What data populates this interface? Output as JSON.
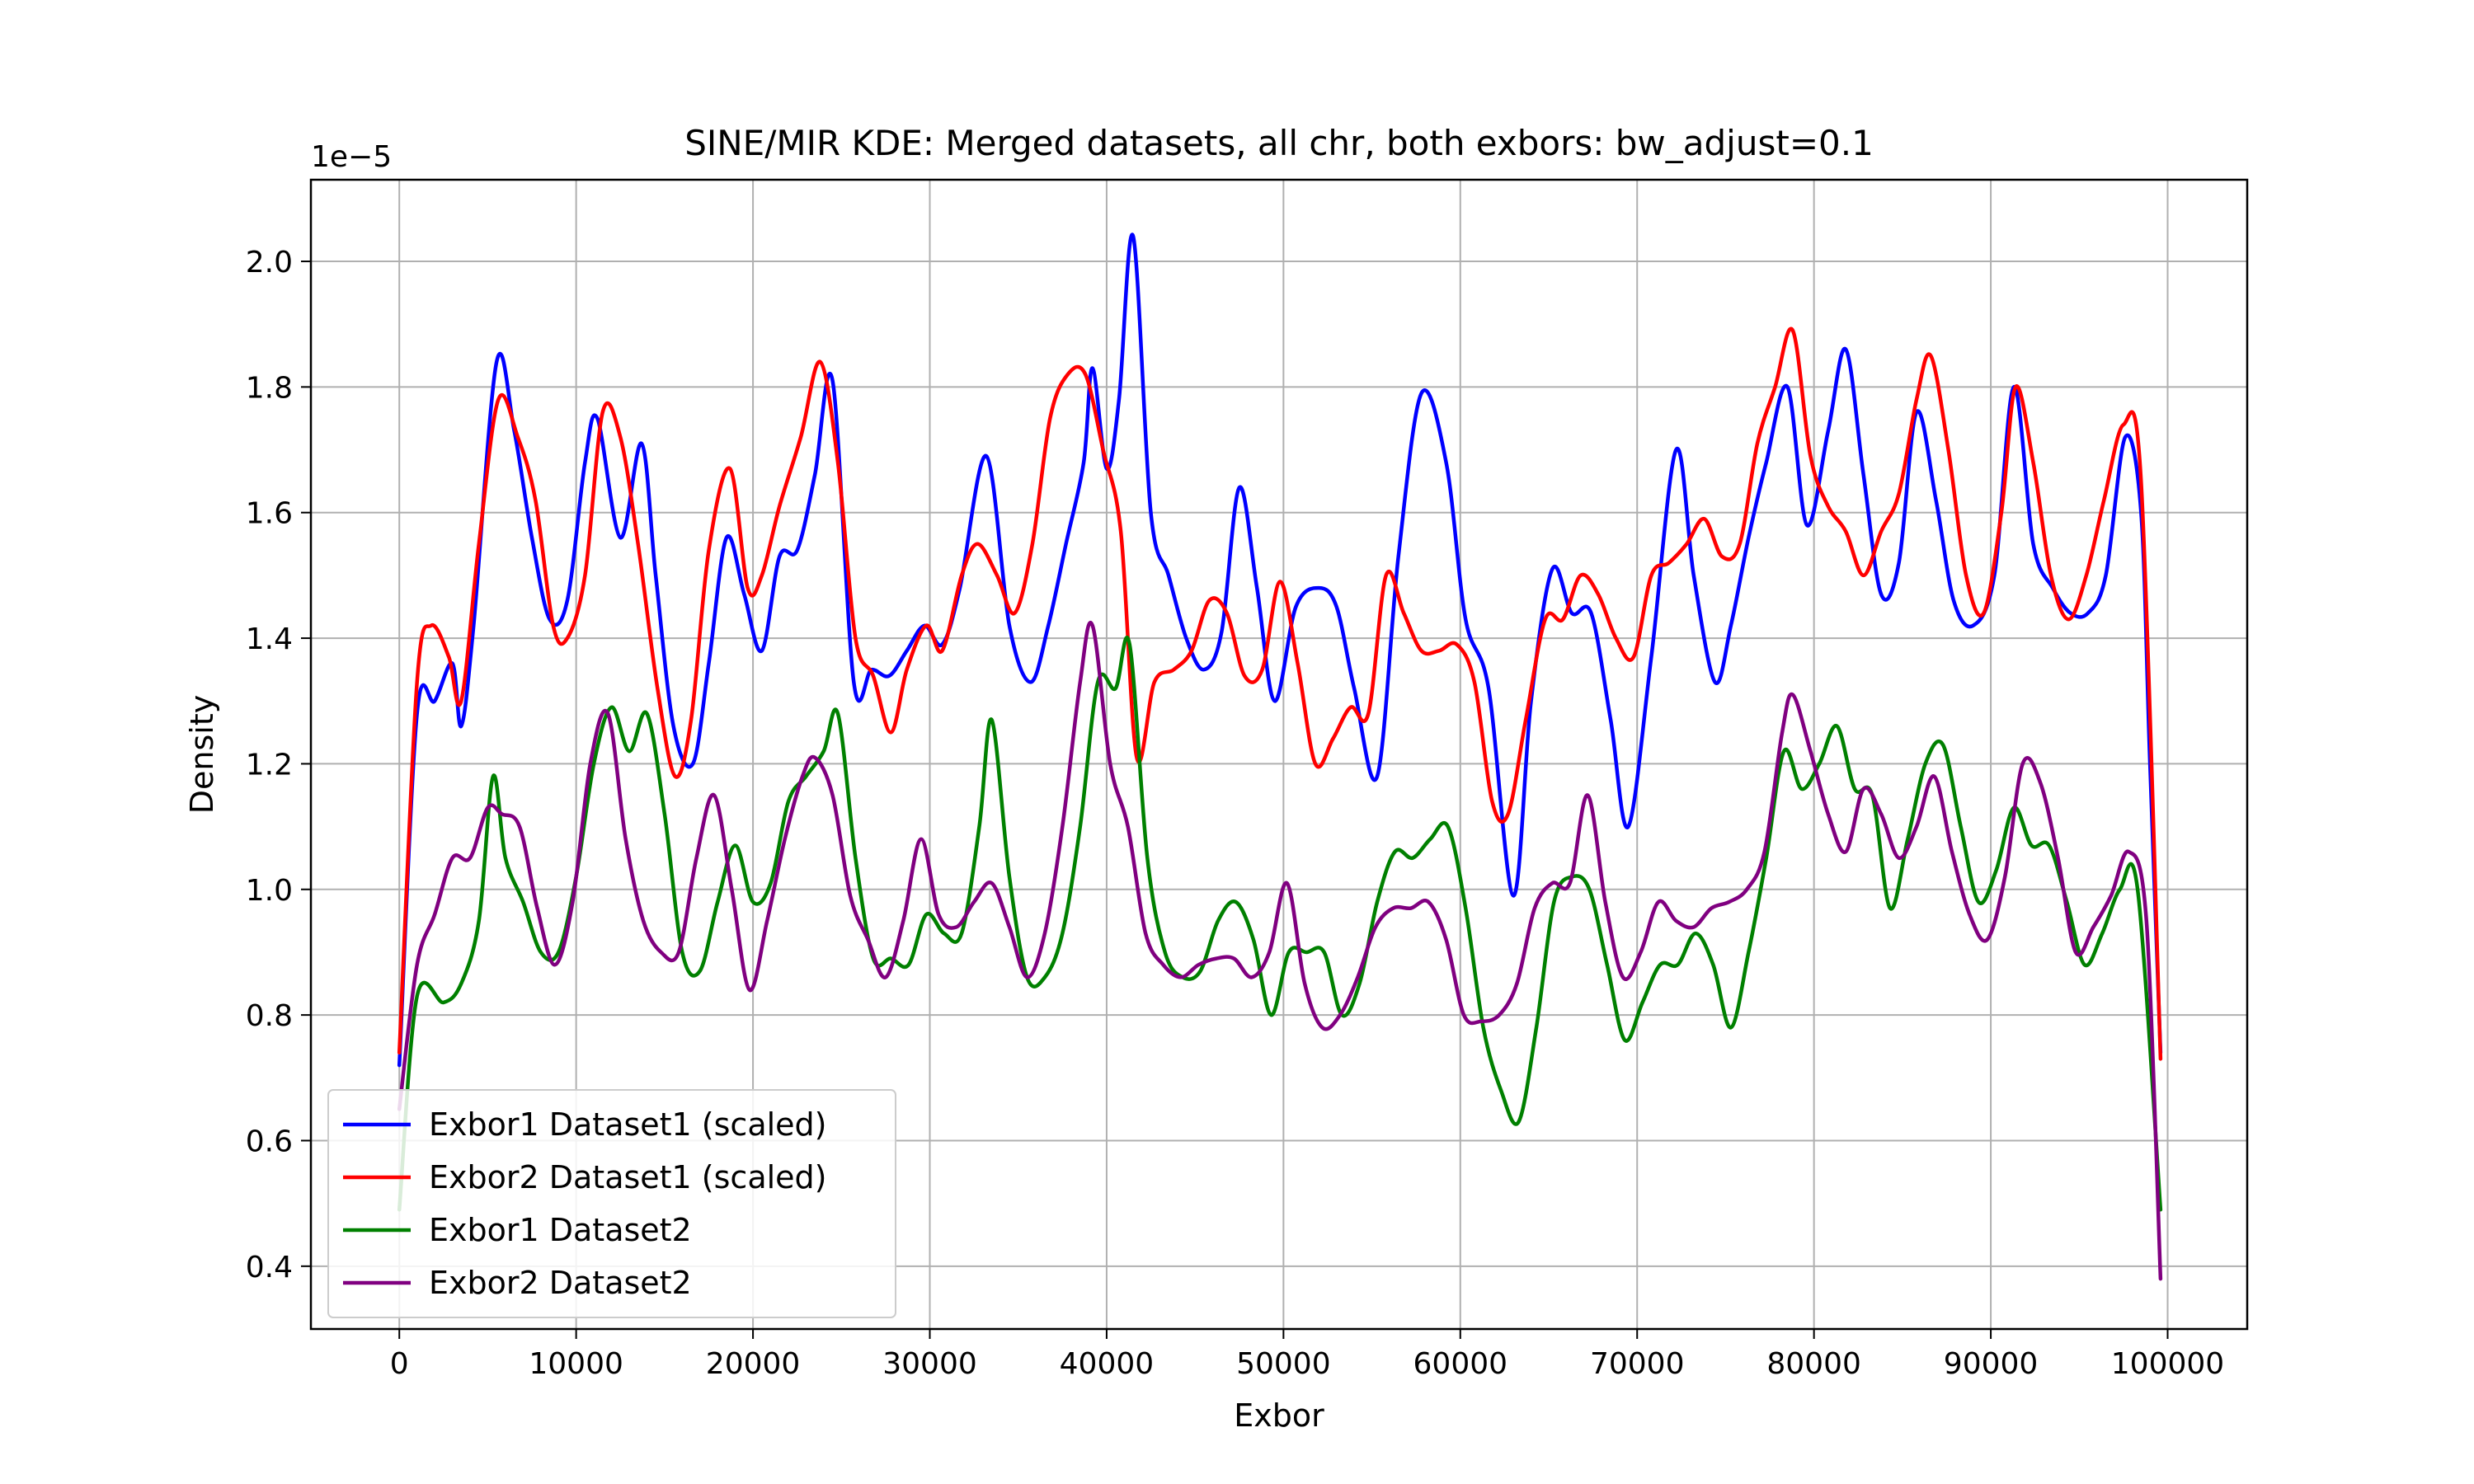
{
  "chart_data": {
    "type": "line",
    "title": "SINE/MIR KDE: Merged datasets, all chr, both exbors: bw_adjust=0.1",
    "xlabel": "Exbor",
    "ylabel": "Density",
    "y_offset_label": "1e−5",
    "xlim": [
      -5000,
      104500
    ],
    "ylim": [
      0.3,
      2.13
    ],
    "y_unit_multiplier": 1e-05,
    "grid": true,
    "legend_position": "lower-left",
    "x_ticks": [
      0,
      10000,
      20000,
      30000,
      40000,
      50000,
      60000,
      70000,
      80000,
      90000,
      100000
    ],
    "x_tick_labels": [
      "0",
      "10000",
      "20000",
      "30000",
      "40000",
      "50000",
      "60000",
      "70000",
      "80000",
      "90000",
      "100000"
    ],
    "y_ticks": [
      0.4,
      0.6,
      0.8,
      1.0,
      1.2,
      1.4,
      1.6,
      1.8,
      2.0
    ],
    "y_tick_labels": [
      "0.4",
      "0.6",
      "0.8",
      "1.0",
      "1.2",
      "1.4",
      "1.6",
      "1.8",
      "2.0"
    ],
    "series": [
      {
        "name": "Exbor1 Dataset1 (scaled)",
        "color": "#0000ff",
        "x": [
          0,
          1000,
          2000,
          3000,
          3500,
          4200,
          5500,
          6500,
          7500,
          8500,
          9500,
          10500,
          11200,
          12500,
          13700,
          14500,
          15500,
          16600,
          17500,
          18500,
          19500,
          20500,
          21500,
          22500,
          23500,
          24500,
          25700,
          26700,
          27700,
          28700,
          29700,
          30700,
          31700,
          33200,
          34500,
          35700,
          36700,
          37700,
          38700,
          39200,
          40000,
          40700,
          41500,
          42500,
          43500,
          44500,
          45500,
          46500,
          47500,
          48500,
          49500,
          50700,
          52000,
          53000,
          54000,
          55300,
          56500,
          57800,
          59200,
          60300,
          61600,
          63000,
          64000,
          65200,
          66300,
          67400,
          68500,
          69500,
          70800,
          72200,
          73200,
          74400,
          75300,
          76300,
          77300,
          78500,
          79600,
          80800,
          81800,
          82800,
          83800,
          84800,
          85800,
          86900,
          87900,
          89000,
          90200,
          91300,
          92400,
          93500,
          94500,
          95500,
          96500,
          97600,
          98500,
          99000,
          99600
        ],
        "values": [
          0.72,
          1.28,
          1.3,
          1.36,
          1.26,
          1.42,
          1.84,
          1.73,
          1.56,
          1.43,
          1.46,
          1.68,
          1.75,
          1.56,
          1.71,
          1.5,
          1.26,
          1.2,
          1.36,
          1.56,
          1.47,
          1.38,
          1.53,
          1.54,
          1.66,
          1.81,
          1.33,
          1.35,
          1.34,
          1.38,
          1.42,
          1.39,
          1.48,
          1.69,
          1.42,
          1.33,
          1.42,
          1.55,
          1.68,
          1.83,
          1.67,
          1.78,
          2.04,
          1.6,
          1.5,
          1.4,
          1.35,
          1.41,
          1.64,
          1.48,
          1.3,
          1.45,
          1.48,
          1.45,
          1.32,
          1.18,
          1.53,
          1.79,
          1.68,
          1.43,
          1.32,
          0.99,
          1.3,
          1.51,
          1.44,
          1.44,
          1.27,
          1.1,
          1.37,
          1.7,
          1.5,
          1.33,
          1.42,
          1.56,
          1.68,
          1.8,
          1.58,
          1.73,
          1.86,
          1.66,
          1.47,
          1.52,
          1.76,
          1.62,
          1.46,
          1.42,
          1.5,
          1.8,
          1.55,
          1.48,
          1.44,
          1.44,
          1.5,
          1.72,
          1.6,
          1.2,
          0.74
        ]
      },
      {
        "name": "Exbor2 Dataset1 (scaled)",
        "color": "#ff0000",
        "x": [
          0,
          1000,
          1800,
          2800,
          3500,
          4500,
          5600,
          6700,
          7700,
          8700,
          9500,
          10500,
          11500,
          12500,
          13500,
          14600,
          15600,
          16500,
          17500,
          18700,
          19700,
          20500,
          21500,
          22700,
          23800,
          24800,
          25800,
          26800,
          27800,
          28700,
          29800,
          30700,
          31800,
          32700,
          33800,
          34800,
          35800,
          36800,
          37800,
          38800,
          39800,
          40800,
          41700,
          42700,
          43800,
          44800,
          45800,
          46800,
          47800,
          48800,
          49800,
          50800,
          51800,
          52800,
          53800,
          54800,
          55800,
          56800,
          57800,
          58800,
          59800,
          60800,
          61800,
          62700,
          63700,
          64800,
          65800,
          66800,
          67800,
          68800,
          69800,
          70800,
          71800,
          72800,
          73800,
          74800,
          75800,
          76800,
          77800,
          78800,
          79800,
          80800,
          81800,
          82800,
          83800,
          84800,
          85800,
          86600,
          87600,
          88600,
          89600,
          90600,
          91400,
          92400,
          93400,
          94400,
          95400,
          96400,
          97500,
          98500,
          99600
        ],
        "values": [
          0.74,
          1.33,
          1.42,
          1.37,
          1.3,
          1.55,
          1.78,
          1.72,
          1.62,
          1.42,
          1.4,
          1.5,
          1.76,
          1.72,
          1.55,
          1.32,
          1.18,
          1.27,
          1.54,
          1.67,
          1.48,
          1.5,
          1.61,
          1.72,
          1.84,
          1.68,
          1.4,
          1.34,
          1.25,
          1.35,
          1.42,
          1.38,
          1.5,
          1.55,
          1.5,
          1.44,
          1.55,
          1.75,
          1.82,
          1.82,
          1.7,
          1.57,
          1.21,
          1.33,
          1.35,
          1.38,
          1.46,
          1.44,
          1.34,
          1.35,
          1.49,
          1.36,
          1.2,
          1.24,
          1.29,
          1.28,
          1.5,
          1.44,
          1.38,
          1.38,
          1.39,
          1.33,
          1.14,
          1.12,
          1.27,
          1.43,
          1.43,
          1.5,
          1.47,
          1.4,
          1.37,
          1.5,
          1.52,
          1.55,
          1.59,
          1.53,
          1.55,
          1.71,
          1.8,
          1.89,
          1.69,
          1.61,
          1.57,
          1.5,
          1.57,
          1.63,
          1.78,
          1.85,
          1.7,
          1.5,
          1.44,
          1.6,
          1.8,
          1.68,
          1.5,
          1.43,
          1.5,
          1.62,
          1.74,
          1.65,
          0.73
        ]
      },
      {
        "name": "Exbor1 Dataset2",
        "color": "#008000",
        "x": [
          0,
          1000,
          2500,
          3500,
          4500,
          5300,
          6000,
          7000,
          8000,
          9000,
          10000,
          11000,
          12000,
          13000,
          14000,
          15000,
          16000,
          17000,
          18000,
          19000,
          20000,
          21000,
          22000,
          23000,
          24000,
          24800,
          25800,
          26800,
          27800,
          28800,
          29800,
          30800,
          31800,
          32800,
          33500,
          34500,
          35500,
          36500,
          37500,
          38500,
          39500,
          40500,
          41300,
          42300,
          43300,
          44300,
          45300,
          46300,
          47300,
          48300,
          49300,
          50300,
          51300,
          52300,
          53300,
          54300,
          55300,
          56300,
          57300,
          58300,
          59300,
          60300,
          61300,
          62300,
          63300,
          64300,
          65300,
          66300,
          67300,
          68300,
          69300,
          70300,
          71300,
          72300,
          73300,
          74300,
          75300,
          76300,
          77300,
          78300,
          79300,
          80300,
          81300,
          82300,
          83300,
          84300,
          85300,
          86300,
          87300,
          88300,
          89300,
          90300,
          91300,
          92300,
          93300,
          94300,
          95300,
          96300,
          97300,
          98300,
          99600
        ],
        "values": [
          0.49,
          0.83,
          0.82,
          0.85,
          0.95,
          1.18,
          1.05,
          0.98,
          0.9,
          0.9,
          1.02,
          1.2,
          1.29,
          1.22,
          1.28,
          1.12,
          0.9,
          0.87,
          0.98,
          1.07,
          0.98,
          1.01,
          1.14,
          1.18,
          1.22,
          1.28,
          1.05,
          0.89,
          0.89,
          0.88,
          0.96,
          0.93,
          0.93,
          1.1,
          1.27,
          1.02,
          0.86,
          0.86,
          0.93,
          1.1,
          1.33,
          1.32,
          1.39,
          1.05,
          0.9,
          0.86,
          0.87,
          0.95,
          0.98,
          0.92,
          0.8,
          0.9,
          0.9,
          0.9,
          0.8,
          0.85,
          0.98,
          1.06,
          1.05,
          1.08,
          1.1,
          0.97,
          0.78,
          0.68,
          0.63,
          0.78,
          0.98,
          1.02,
          1.0,
          0.88,
          0.76,
          0.82,
          0.88,
          0.88,
          0.93,
          0.88,
          0.78,
          0.9,
          1.05,
          1.22,
          1.16,
          1.2,
          1.26,
          1.16,
          1.15,
          0.97,
          1.08,
          1.2,
          1.23,
          1.1,
          0.98,
          1.03,
          1.13,
          1.07,
          1.07,
          0.98,
          0.88,
          0.93,
          1.0,
          1.0,
          0.49
        ]
      },
      {
        "name": "Exbor2 Dataset2",
        "color": "#800080",
        "x": [
          0,
          1000,
          2000,
          3000,
          4000,
          5000,
          5800,
          6800,
          7800,
          8800,
          9800,
          10800,
          11800,
          12800,
          13800,
          14800,
          15800,
          16800,
          17800,
          18800,
          19800,
          20800,
          21800,
          22800,
          23500,
          24500,
          25500,
          26500,
          27500,
          28500,
          29500,
          30500,
          31500,
          32500,
          33500,
          34500,
          35500,
          36500,
          37500,
          38500,
          39200,
          40200,
          41200,
          42200,
          43200,
          44200,
          45200,
          46200,
          47200,
          48200,
          49200,
          50200,
          51200,
          52200,
          53200,
          54200,
          55200,
          56200,
          57200,
          58200,
          59200,
          60200,
          61200,
          62200,
          63200,
          64200,
          65200,
          66200,
          67200,
          68200,
          69200,
          70200,
          71200,
          72200,
          73200,
          74200,
          75200,
          76200,
          77200,
          78200,
          78800,
          79800,
          80800,
          81800,
          82800,
          83800,
          84800,
          85800,
          86800,
          87800,
          88800,
          89800,
          90800,
          91800,
          92800,
          93800,
          94800,
          95800,
          96800,
          97800,
          98800,
          99600
        ],
        "values": [
          0.65,
          0.88,
          0.96,
          1.05,
          1.05,
          1.13,
          1.12,
          1.1,
          0.97,
          0.88,
          0.98,
          1.2,
          1.28,
          1.08,
          0.95,
          0.9,
          0.9,
          1.05,
          1.15,
          1.0,
          0.84,
          0.95,
          1.08,
          1.18,
          1.21,
          1.15,
          0.99,
          0.92,
          0.86,
          0.95,
          1.08,
          0.96,
          0.94,
          0.98,
          1.01,
          0.94,
          0.86,
          0.93,
          1.1,
          1.33,
          1.42,
          1.2,
          1.1,
          0.93,
          0.88,
          0.86,
          0.88,
          0.89,
          0.89,
          0.86,
          0.9,
          1.01,
          0.85,
          0.78,
          0.8,
          0.86,
          0.94,
          0.97,
          0.97,
          0.98,
          0.92,
          0.8,
          0.79,
          0.8,
          0.85,
          0.97,
          1.01,
          1.01,
          1.15,
          0.98,
          0.86,
          0.9,
          0.98,
          0.95,
          0.94,
          0.97,
          0.98,
          1.0,
          1.06,
          1.25,
          1.31,
          1.22,
          1.12,
          1.06,
          1.16,
          1.12,
          1.05,
          1.1,
          1.18,
          1.06,
          0.96,
          0.92,
          1.02,
          1.2,
          1.17,
          1.05,
          0.9,
          0.94,
          0.99,
          1.06,
          0.95,
          0.38
        ]
      }
    ]
  }
}
